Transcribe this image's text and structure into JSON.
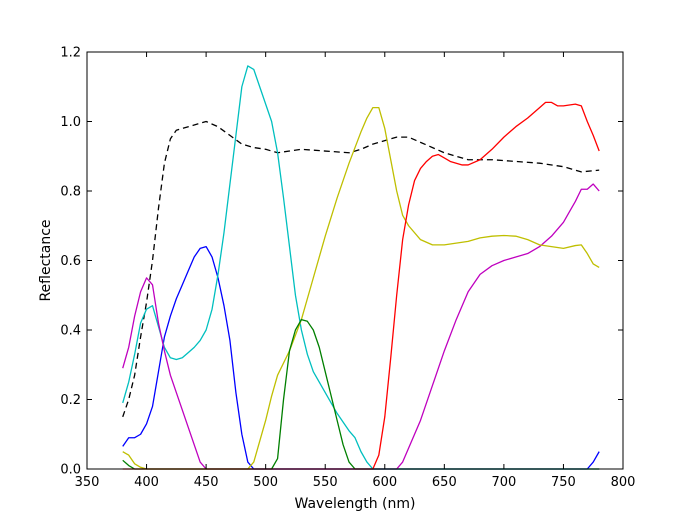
{
  "chart_data": {
    "type": "line",
    "title": "",
    "xlabel": "Wavelength (nm)",
    "ylabel": "Reflectance",
    "xlim": [
      350,
      800
    ],
    "ylim": [
      0.0,
      1.2
    ],
    "xticks": [
      350,
      400,
      450,
      500,
      550,
      600,
      650,
      700,
      750,
      800
    ],
    "yticks": [
      0.0,
      0.2,
      0.4,
      0.6,
      0.8,
      1.0,
      1.2
    ],
    "xtick_labels": [
      "350",
      "400",
      "450",
      "500",
      "550",
      "600",
      "650",
      "700",
      "750",
      "800"
    ],
    "ytick_labels": [
      "0.0",
      "0.2",
      "0.4",
      "0.6",
      "0.8",
      "1.0",
      "1.2"
    ],
    "grid": false,
    "legend": "none",
    "series": [
      {
        "color": "#000000",
        "dash": "dashed",
        "points": [
          [
            380,
            0.15
          ],
          [
            385,
            0.2
          ],
          [
            390,
            0.27
          ],
          [
            395,
            0.38
          ],
          [
            400,
            0.48
          ],
          [
            405,
            0.6
          ],
          [
            410,
            0.75
          ],
          [
            415,
            0.88
          ],
          [
            420,
            0.95
          ],
          [
            425,
            0.975
          ],
          [
            430,
            0.98
          ],
          [
            440,
            0.99
          ],
          [
            450,
            1.0
          ],
          [
            460,
            0.985
          ],
          [
            470,
            0.96
          ],
          [
            480,
            0.935
          ],
          [
            490,
            0.925
          ],
          [
            500,
            0.92
          ],
          [
            510,
            0.91
          ],
          [
            520,
            0.915
          ],
          [
            530,
            0.92
          ],
          [
            550,
            0.915
          ],
          [
            570,
            0.91
          ],
          [
            580,
            0.92
          ],
          [
            590,
            0.935
          ],
          [
            600,
            0.945
          ],
          [
            610,
            0.955
          ],
          [
            620,
            0.955
          ],
          [
            630,
            0.94
          ],
          [
            650,
            0.91
          ],
          [
            670,
            0.89
          ],
          [
            690,
            0.89
          ],
          [
            710,
            0.885
          ],
          [
            730,
            0.88
          ],
          [
            750,
            0.87
          ],
          [
            765,
            0.855
          ],
          [
            780,
            0.86
          ]
        ]
      },
      {
        "color": "#0000ff",
        "dash": "solid",
        "points": [
          [
            380,
            0.065
          ],
          [
            385,
            0.09
          ],
          [
            390,
            0.09
          ],
          [
            395,
            0.1
          ],
          [
            400,
            0.13
          ],
          [
            405,
            0.18
          ],
          [
            410,
            0.28
          ],
          [
            415,
            0.38
          ],
          [
            420,
            0.44
          ],
          [
            425,
            0.49
          ],
          [
            430,
            0.53
          ],
          [
            435,
            0.57
          ],
          [
            440,
            0.61
          ],
          [
            445,
            0.635
          ],
          [
            450,
            0.64
          ],
          [
            455,
            0.61
          ],
          [
            460,
            0.55
          ],
          [
            465,
            0.47
          ],
          [
            470,
            0.37
          ],
          [
            475,
            0.22
          ],
          [
            480,
            0.1
          ],
          [
            485,
            0.02
          ],
          [
            490,
            0.0
          ],
          [
            770,
            0.0
          ],
          [
            775,
            0.02
          ],
          [
            780,
            0.05
          ]
        ]
      },
      {
        "color": "#00bfbf",
        "dash": "solid",
        "points": [
          [
            380,
            0.19
          ],
          [
            385,
            0.25
          ],
          [
            390,
            0.33
          ],
          [
            395,
            0.42
          ],
          [
            400,
            0.46
          ],
          [
            405,
            0.47
          ],
          [
            410,
            0.41
          ],
          [
            415,
            0.35
          ],
          [
            420,
            0.32
          ],
          [
            425,
            0.315
          ],
          [
            430,
            0.32
          ],
          [
            435,
            0.335
          ],
          [
            440,
            0.35
          ],
          [
            445,
            0.37
          ],
          [
            450,
            0.4
          ],
          [
            455,
            0.46
          ],
          [
            460,
            0.56
          ],
          [
            465,
            0.68
          ],
          [
            470,
            0.82
          ],
          [
            475,
            0.96
          ],
          [
            480,
            1.1
          ],
          [
            485,
            1.16
          ],
          [
            490,
            1.15
          ],
          [
            495,
            1.1
          ],
          [
            500,
            1.05
          ],
          [
            505,
            1.0
          ],
          [
            510,
            0.91
          ],
          [
            515,
            0.78
          ],
          [
            520,
            0.64
          ],
          [
            525,
            0.5
          ],
          [
            530,
            0.4
          ],
          [
            535,
            0.33
          ],
          [
            540,
            0.28
          ],
          [
            550,
            0.22
          ],
          [
            560,
            0.16
          ],
          [
            570,
            0.11
          ],
          [
            575,
            0.09
          ],
          [
            580,
            0.05
          ],
          [
            585,
            0.02
          ],
          [
            590,
            0.0
          ],
          [
            780,
            0.0
          ]
        ]
      },
      {
        "color": "#bf00bf",
        "dash": "solid",
        "points": [
          [
            380,
            0.29
          ],
          [
            385,
            0.35
          ],
          [
            390,
            0.44
          ],
          [
            395,
            0.51
          ],
          [
            400,
            0.55
          ],
          [
            405,
            0.53
          ],
          [
            410,
            0.42
          ],
          [
            415,
            0.34
          ],
          [
            420,
            0.27
          ],
          [
            425,
            0.22
          ],
          [
            430,
            0.17
          ],
          [
            435,
            0.12
          ],
          [
            440,
            0.07
          ],
          [
            445,
            0.02
          ],
          [
            450,
            0.0
          ],
          [
            610,
            0.0
          ],
          [
            615,
            0.02
          ],
          [
            620,
            0.06
          ],
          [
            625,
            0.1
          ],
          [
            630,
            0.14
          ],
          [
            640,
            0.24
          ],
          [
            650,
            0.34
          ],
          [
            660,
            0.43
          ],
          [
            670,
            0.51
          ],
          [
            680,
            0.56
          ],
          [
            690,
            0.585
          ],
          [
            700,
            0.6
          ],
          [
            710,
            0.61
          ],
          [
            720,
            0.62
          ],
          [
            730,
            0.64
          ],
          [
            740,
            0.67
          ],
          [
            750,
            0.71
          ],
          [
            755,
            0.74
          ],
          [
            760,
            0.77
          ],
          [
            765,
            0.805
          ],
          [
            770,
            0.805
          ],
          [
            775,
            0.82
          ],
          [
            780,
            0.8
          ]
        ]
      },
      {
        "color": "#bfbf00",
        "dash": "solid",
        "points": [
          [
            380,
            0.05
          ],
          [
            385,
            0.04
          ],
          [
            390,
            0.015
          ],
          [
            395,
            0.005
          ],
          [
            400,
            0.0
          ],
          [
            485,
            0.0
          ],
          [
            490,
            0.02
          ],
          [
            495,
            0.08
          ],
          [
            500,
            0.14
          ],
          [
            505,
            0.21
          ],
          [
            510,
            0.27
          ],
          [
            520,
            0.34
          ],
          [
            530,
            0.43
          ],
          [
            540,
            0.55
          ],
          [
            550,
            0.67
          ],
          [
            560,
            0.78
          ],
          [
            570,
            0.88
          ],
          [
            580,
            0.97
          ],
          [
            585,
            1.01
          ],
          [
            590,
            1.04
          ],
          [
            595,
            1.04
          ],
          [
            600,
            0.98
          ],
          [
            605,
            0.89
          ],
          [
            610,
            0.8
          ],
          [
            615,
            0.73
          ],
          [
            620,
            0.7
          ],
          [
            630,
            0.66
          ],
          [
            640,
            0.645
          ],
          [
            650,
            0.645
          ],
          [
            660,
            0.65
          ],
          [
            670,
            0.655
          ],
          [
            680,
            0.665
          ],
          [
            690,
            0.67
          ],
          [
            700,
            0.672
          ],
          [
            710,
            0.67
          ],
          [
            720,
            0.66
          ],
          [
            730,
            0.645
          ],
          [
            740,
            0.64
          ],
          [
            750,
            0.635
          ],
          [
            760,
            0.643
          ],
          [
            765,
            0.645
          ],
          [
            770,
            0.62
          ],
          [
            775,
            0.59
          ],
          [
            780,
            0.58
          ]
        ]
      },
      {
        "color": "#007f00",
        "dash": "solid",
        "points": [
          [
            380,
            0.025
          ],
          [
            385,
            0.01
          ],
          [
            390,
            0.0
          ],
          [
            505,
            0.0
          ],
          [
            510,
            0.03
          ],
          [
            515,
            0.2
          ],
          [
            520,
            0.34
          ],
          [
            525,
            0.4
          ],
          [
            530,
            0.43
          ],
          [
            535,
            0.425
          ],
          [
            540,
            0.4
          ],
          [
            545,
            0.35
          ],
          [
            550,
            0.28
          ],
          [
            555,
            0.21
          ],
          [
            560,
            0.14
          ],
          [
            565,
            0.07
          ],
          [
            570,
            0.02
          ],
          [
            575,
            0.0
          ],
          [
            780,
            0.0
          ]
        ]
      },
      {
        "color": "#ff0000",
        "dash": "solid",
        "points": [
          [
            380,
            0.0
          ],
          [
            590,
            0.0
          ],
          [
            595,
            0.04
          ],
          [
            600,
            0.15
          ],
          [
            605,
            0.32
          ],
          [
            610,
            0.5
          ],
          [
            615,
            0.66
          ],
          [
            620,
            0.76
          ],
          [
            625,
            0.83
          ],
          [
            630,
            0.865
          ],
          [
            635,
            0.885
          ],
          [
            640,
            0.9
          ],
          [
            645,
            0.905
          ],
          [
            650,
            0.895
          ],
          [
            655,
            0.885
          ],
          [
            660,
            0.88
          ],
          [
            665,
            0.875
          ],
          [
            670,
            0.875
          ],
          [
            680,
            0.89
          ],
          [
            690,
            0.92
          ],
          [
            700,
            0.955
          ],
          [
            710,
            0.985
          ],
          [
            720,
            1.01
          ],
          [
            730,
            1.04
          ],
          [
            735,
            1.055
          ],
          [
            740,
            1.055
          ],
          [
            745,
            1.045
          ],
          [
            750,
            1.045
          ],
          [
            760,
            1.05
          ],
          [
            765,
            1.045
          ],
          [
            770,
            1.0
          ],
          [
            775,
            0.96
          ],
          [
            780,
            0.915
          ]
        ]
      }
    ]
  }
}
